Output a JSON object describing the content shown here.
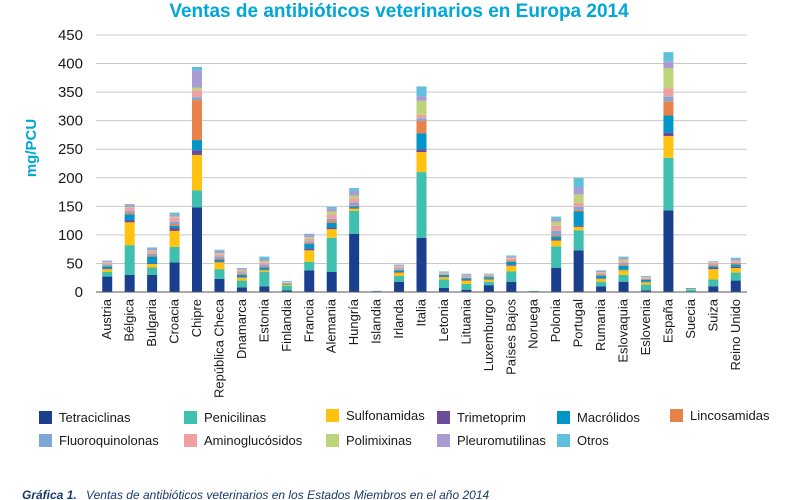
{
  "chart_data": {
    "type": "bar",
    "stacked": true,
    "title": "Ventas de antibióticos veterinarios en Europa 2014",
    "ylabel": "mg/PCU",
    "xlabel": "",
    "ylim": [
      0,
      450
    ],
    "yticks": [
      0,
      50,
      100,
      150,
      200,
      250,
      300,
      350,
      400,
      450
    ],
    "grid": true,
    "legend_position": "bottom",
    "categories": [
      "Austria",
      "Bélgica",
      "Bulgaria",
      "Croacia",
      "Chipre",
      "República Checa",
      "Dnamarca",
      "Estonia",
      "Finlandia",
      "Francia",
      "Alemania",
      "Hungría",
      "Islandia",
      "Irlanda",
      "Italia",
      "Letonia",
      "Lituania",
      "Luxemburgo",
      "Países Bajos",
      "Noruega",
      "Polonia",
      "Portugal",
      "Rumania",
      "Eslovaquia",
      "Eslovenia",
      "España",
      "Suecia",
      "Suiza",
      "Reino Unido"
    ],
    "series": [
      {
        "name": "Tetraciclinas",
        "color": "#1b3f8f",
        "values": [
          27,
          30,
          30,
          52,
          148,
          23,
          8,
          10,
          3,
          38,
          35,
          102,
          1,
          18,
          95,
          7,
          4,
          12,
          18,
          0,
          42,
          73,
          10,
          18,
          3,
          143,
          1,
          10,
          20
        ]
      },
      {
        "name": "Penicilinas",
        "color": "#3fbfad",
        "values": [
          8,
          52,
          13,
          27,
          30,
          17,
          12,
          25,
          8,
          15,
          60,
          40,
          1,
          10,
          115,
          15,
          10,
          6,
          18,
          1,
          38,
          35,
          8,
          12,
          10,
          92,
          3,
          12,
          14
        ]
      },
      {
        "name": "Sulfonamidas",
        "color": "#ffc20e",
        "values": [
          5,
          40,
          6,
          28,
          62,
          12,
          5,
          3,
          2,
          20,
          15,
          4,
          0,
          6,
          35,
          4,
          6,
          4,
          10,
          0,
          10,
          6,
          5,
          8,
          4,
          38,
          1,
          18,
          8
        ]
      },
      {
        "name": "Trimetoprim",
        "color": "#6b4c9a",
        "values": [
          1,
          4,
          1,
          5,
          8,
          2,
          1,
          1,
          0,
          3,
          3,
          1,
          0,
          1,
          5,
          1,
          1,
          1,
          2,
          0,
          2,
          2,
          1,
          1,
          1,
          6,
          0,
          2,
          2
        ]
      },
      {
        "name": "Macrólidos",
        "color": "#0096c8",
        "values": [
          4,
          10,
          12,
          4,
          18,
          3,
          4,
          4,
          1,
          8,
          8,
          3,
          0,
          3,
          28,
          3,
          3,
          3,
          5,
          0,
          5,
          25,
          4,
          7,
          3,
          30,
          1,
          3,
          4
        ]
      },
      {
        "name": "Lincosamidas",
        "color": "#e8824a",
        "values": [
          1,
          3,
          2,
          3,
          70,
          2,
          2,
          2,
          0,
          2,
          4,
          2,
          0,
          1,
          22,
          1,
          1,
          1,
          2,
          0,
          3,
          3,
          2,
          2,
          1,
          25,
          0,
          2,
          2
        ]
      },
      {
        "name": "Fluoroquinolonas",
        "color": "#7fa6d9",
        "values": [
          2,
          3,
          3,
          4,
          5,
          3,
          2,
          3,
          1,
          3,
          3,
          5,
          0,
          2,
          4,
          1,
          1,
          1,
          1,
          0,
          7,
          5,
          2,
          3,
          1,
          8,
          0,
          1,
          1
        ]
      },
      {
        "name": "Aminoglucósidos",
        "color": "#f0a0a0",
        "values": [
          3,
          5,
          4,
          7,
          12,
          4,
          3,
          4,
          1,
          4,
          8,
          7,
          0,
          3,
          6,
          1,
          2,
          1,
          3,
          0,
          9,
          7,
          2,
          3,
          2,
          15,
          0,
          3,
          3
        ]
      },
      {
        "name": "Polimixinas",
        "color": "#bcd47a",
        "values": [
          1,
          2,
          2,
          2,
          5,
          2,
          2,
          2,
          1,
          3,
          5,
          5,
          0,
          1,
          25,
          1,
          1,
          1,
          1,
          0,
          7,
          15,
          1,
          3,
          1,
          35,
          0,
          1,
          1
        ]
      },
      {
        "name": "Pleuromutilinas",
        "color": "#a99bd3",
        "values": [
          2,
          4,
          3,
          4,
          30,
          4,
          2,
          3,
          1,
          4,
          5,
          8,
          0,
          2,
          8,
          1,
          2,
          1,
          2,
          0,
          5,
          12,
          2,
          3,
          1,
          12,
          0,
          1,
          2
        ]
      },
      {
        "name": "Otros",
        "color": "#5fc0dc",
        "values": [
          1,
          1,
          2,
          3,
          6,
          2,
          1,
          5,
          1,
          2,
          3,
          5,
          0,
          1,
          17,
          1,
          1,
          1,
          2,
          1,
          4,
          17,
          1,
          2,
          1,
          16,
          1,
          1,
          3
        ]
      }
    ]
  },
  "caption": {
    "label": "Gráfica 1.",
    "text": "Ventas de antibióticos veterinarios en los Estados Miembros en el año 2014"
  },
  "colors": {
    "title": "#00a7d7",
    "ylabel": "#00a7d7",
    "caption": "#1a3a6b",
    "grid": "#c8c8c8"
  }
}
